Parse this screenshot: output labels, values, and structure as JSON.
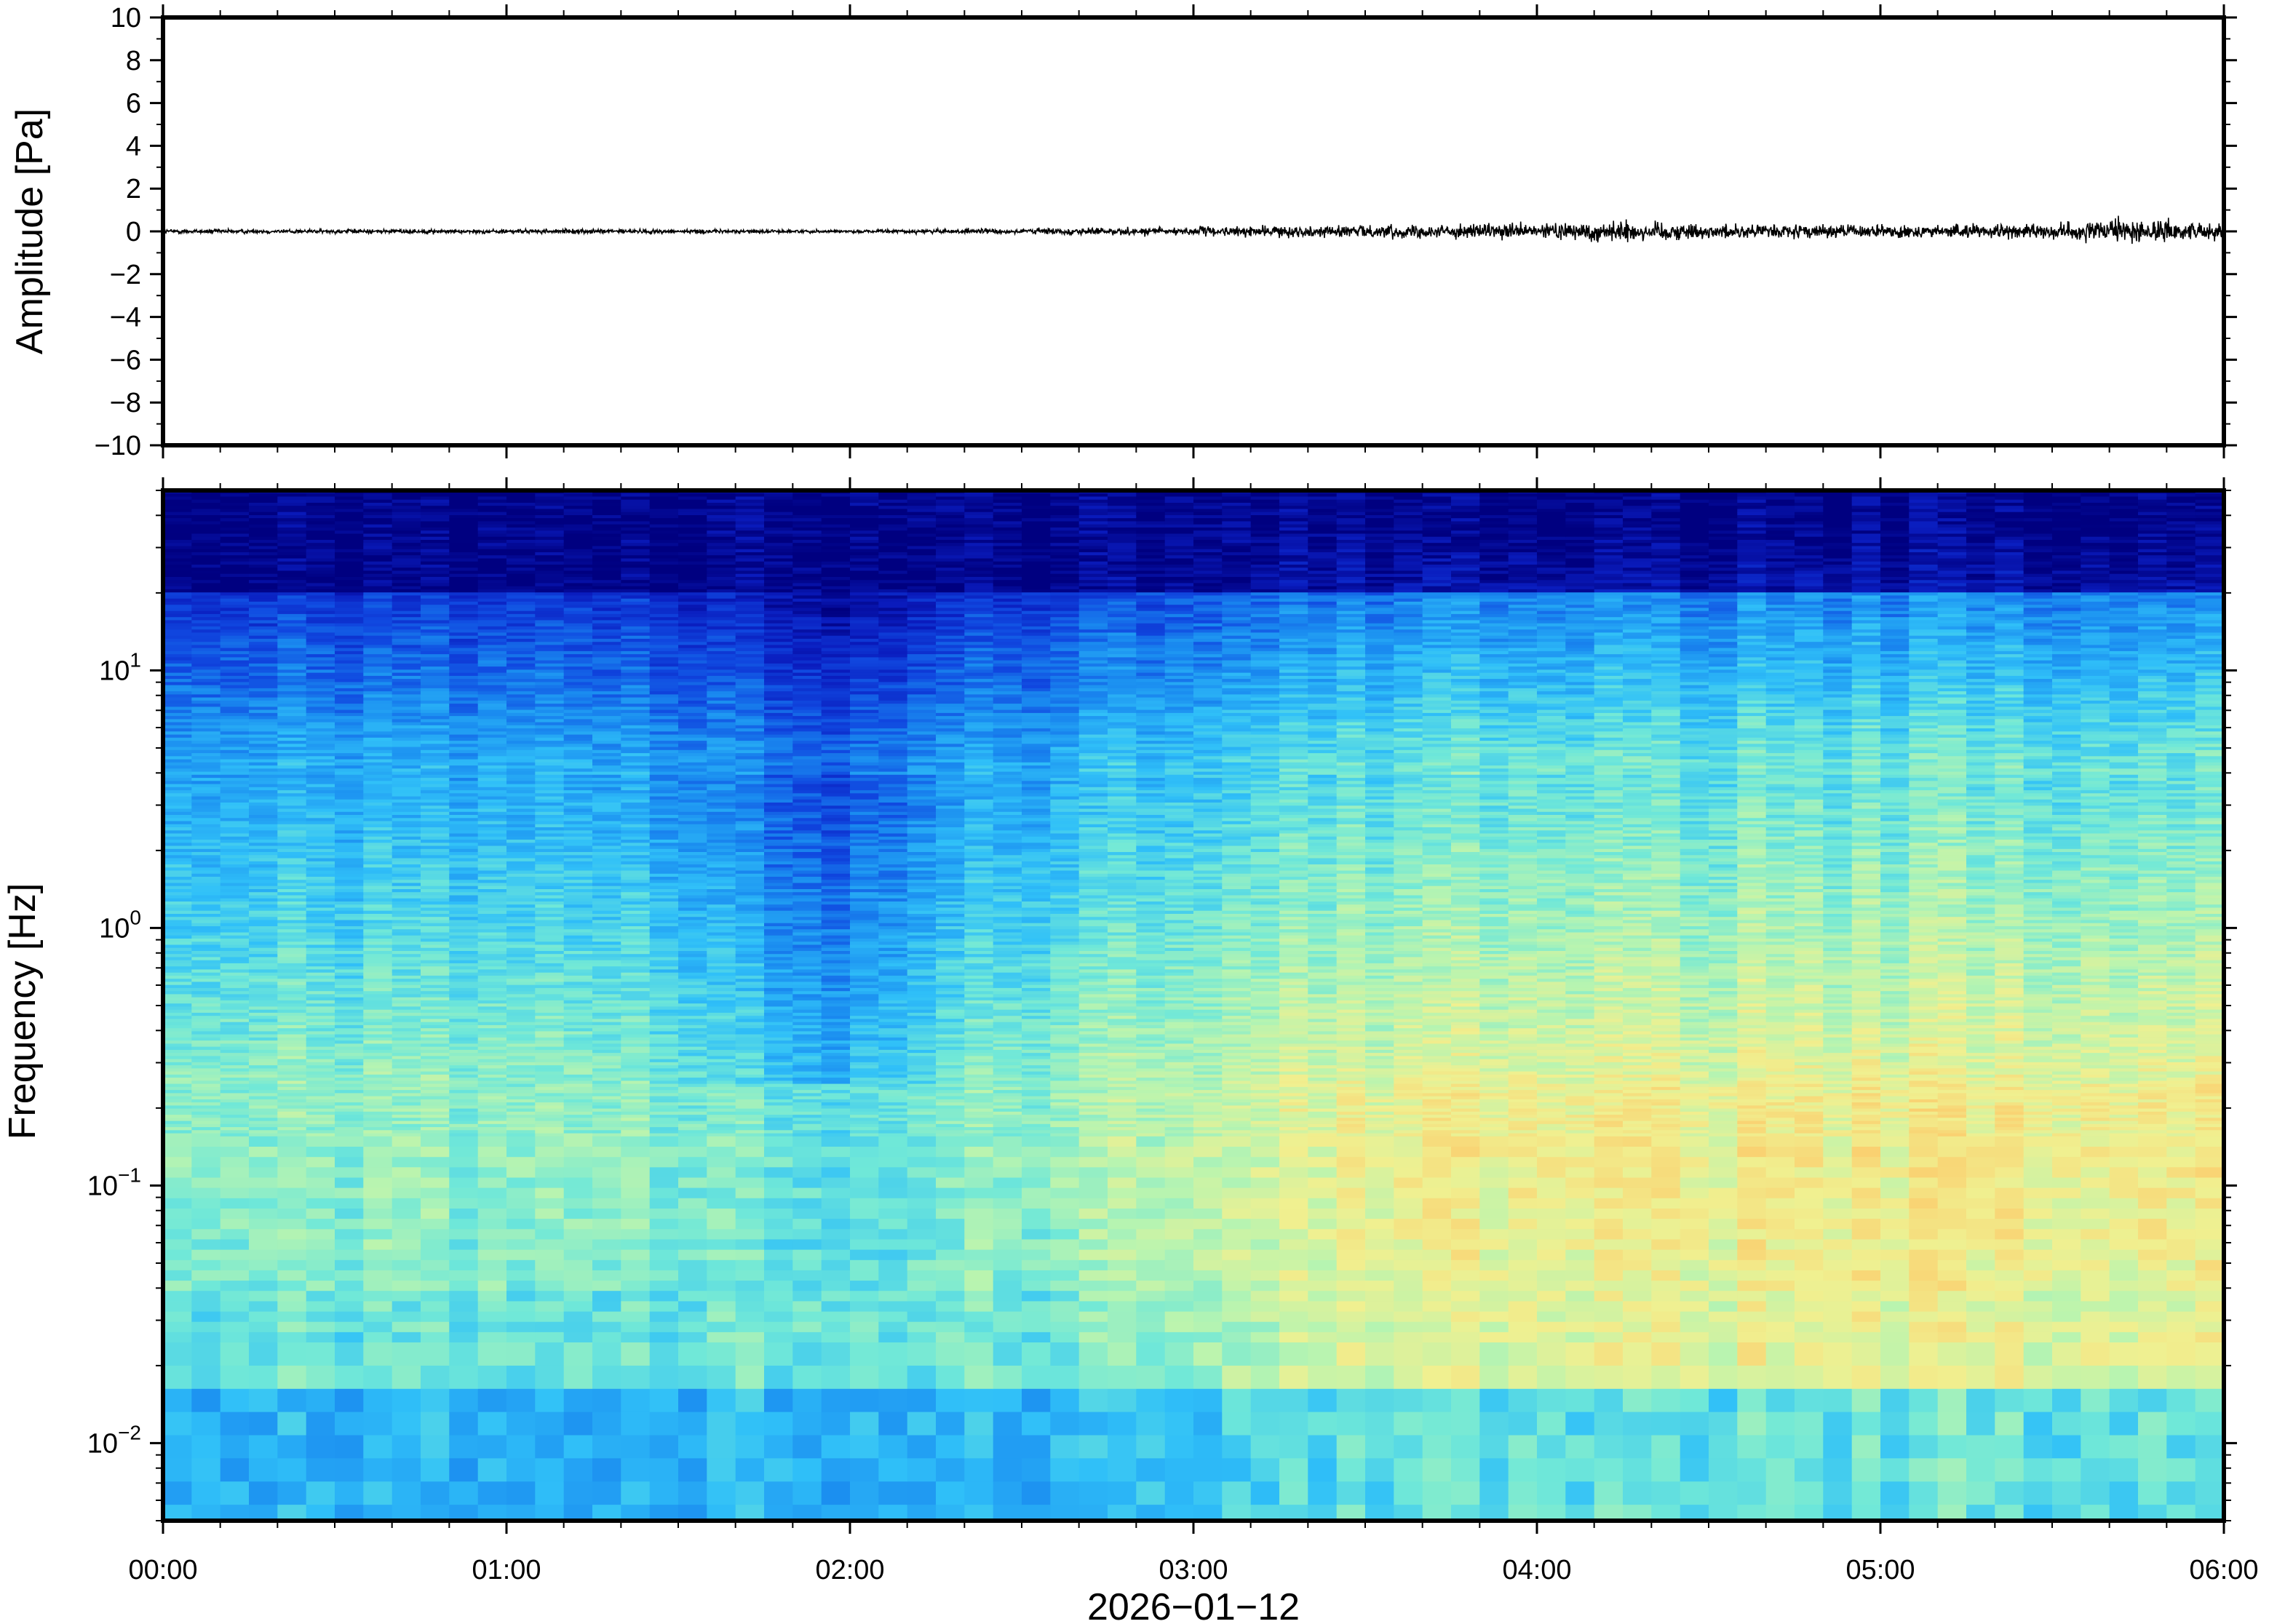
{
  "chart_data": [
    {
      "type": "line",
      "title": "",
      "ylabel": "Amplitude [Pa]",
      "xlabel": "",
      "ylim": [
        -10,
        10
      ],
      "yticks": [
        10,
        8,
        6,
        4,
        2,
        0,
        -2,
        -4,
        -6,
        -8,
        -10
      ],
      "ytick_labels": [
        "10",
        "8",
        "6",
        "4",
        "2",
        "0",
        "−2",
        "−4",
        "−6",
        "−8",
        "−10"
      ],
      "xlim": [
        "00:00",
        "06:00"
      ],
      "grid": false,
      "series": [
        {
          "color": "#000000",
          "x": [
            "00:00",
            "00:30",
            "01:00",
            "01:30",
            "02:00",
            "02:30",
            "03:00",
            "03:30",
            "04:00",
            "04:15",
            "04:30",
            "05:00",
            "05:30",
            "05:45",
            "06:00"
          ],
          "y_envelope": [
            0.15,
            0.15,
            0.15,
            0.15,
            0.1,
            0.2,
            0.3,
            0.45,
            0.5,
            0.8,
            0.5,
            0.45,
            0.5,
            0.9,
            0.5
          ]
        }
      ]
    },
    {
      "type": "heatmap",
      "title": "",
      "ylabel": "Frequency [Hz]",
      "xlabel": "2026−01−12",
      "yscale": "log",
      "ylim": [
        0.005,
        50
      ],
      "yticks": [
        0.01,
        0.1,
        1,
        10
      ],
      "ytick_labels": [
        {
          "base": "10",
          "exp": "−2"
        },
        {
          "base": "10",
          "exp": "−1"
        },
        {
          "base": "10",
          "exp": "0"
        },
        {
          "base": "10",
          "exp": "1"
        }
      ],
      "x_tick_labels": [
        "00:00",
        "01:00",
        "02:00",
        "03:00",
        "04:00",
        "05:00",
        "06:00"
      ],
      "colormap": [
        "#000080",
        "#0a1cbe",
        "#1048e0",
        "#1a8cf0",
        "#30c0f8",
        "#70e8d8",
        "#b8f4b0",
        "#f0f090",
        "#fad070",
        "#f4a050"
      ],
      "grid": false
    }
  ]
}
